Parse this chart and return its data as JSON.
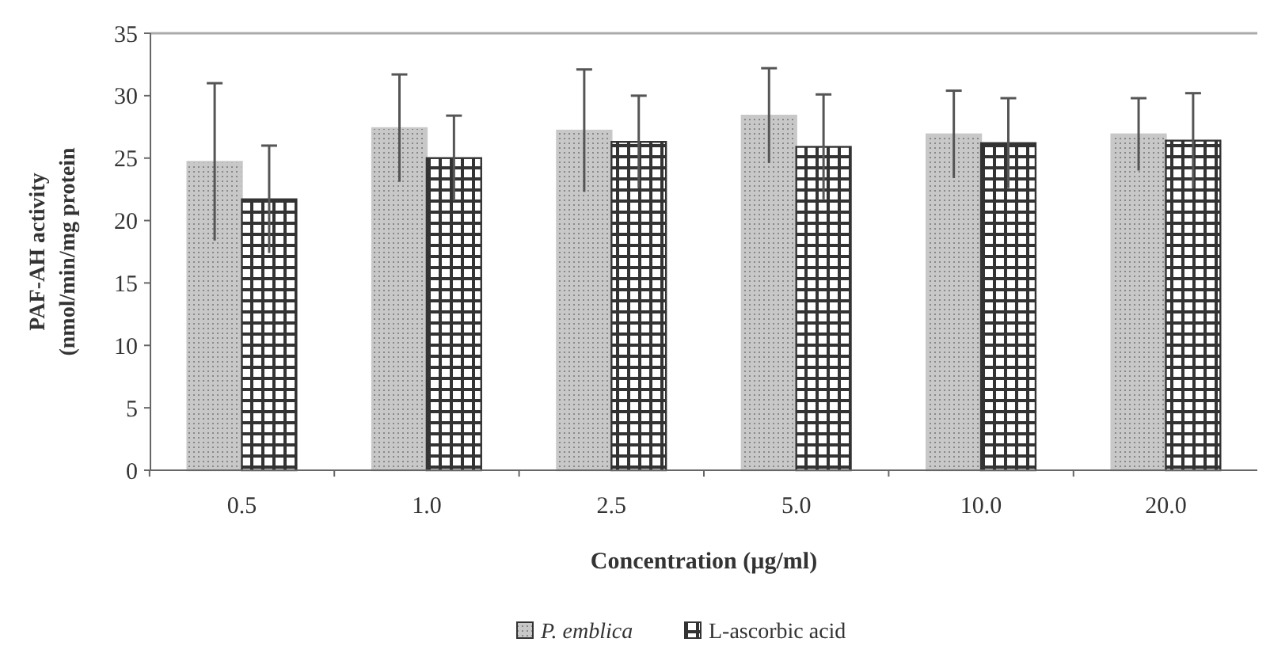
{
  "chart_data": {
    "type": "bar",
    "xlabel": "Concentration (µg/ml)",
    "ylabel": "PAF-AH activity\n(nmol/min/mg protein",
    "categories": [
      "0.5",
      "1.0",
      "2.5",
      "5.0",
      "10.0",
      "20.0"
    ],
    "series": [
      {
        "name": "P. emblica",
        "color": "#c8c8c8",
        "values": [
          24.7,
          27.4,
          27.2,
          28.4,
          26.9,
          26.9
        ],
        "errors": [
          6.3,
          4.3,
          4.9,
          3.8,
          3.5,
          2.9
        ]
      },
      {
        "name": "L-ascorbic acid",
        "color": "#333333",
        "values": [
          21.7,
          25.0,
          26.3,
          25.9,
          26.2,
          26.4
        ],
        "errors": [
          4.3,
          3.4,
          3.7,
          4.2,
          3.6,
          3.8
        ]
      }
    ],
    "ylim": [
      0,
      35
    ],
    "yticks": [
      0,
      5,
      10,
      15,
      20,
      25,
      30,
      35
    ],
    "grid": false,
    "legend": "bottom"
  }
}
